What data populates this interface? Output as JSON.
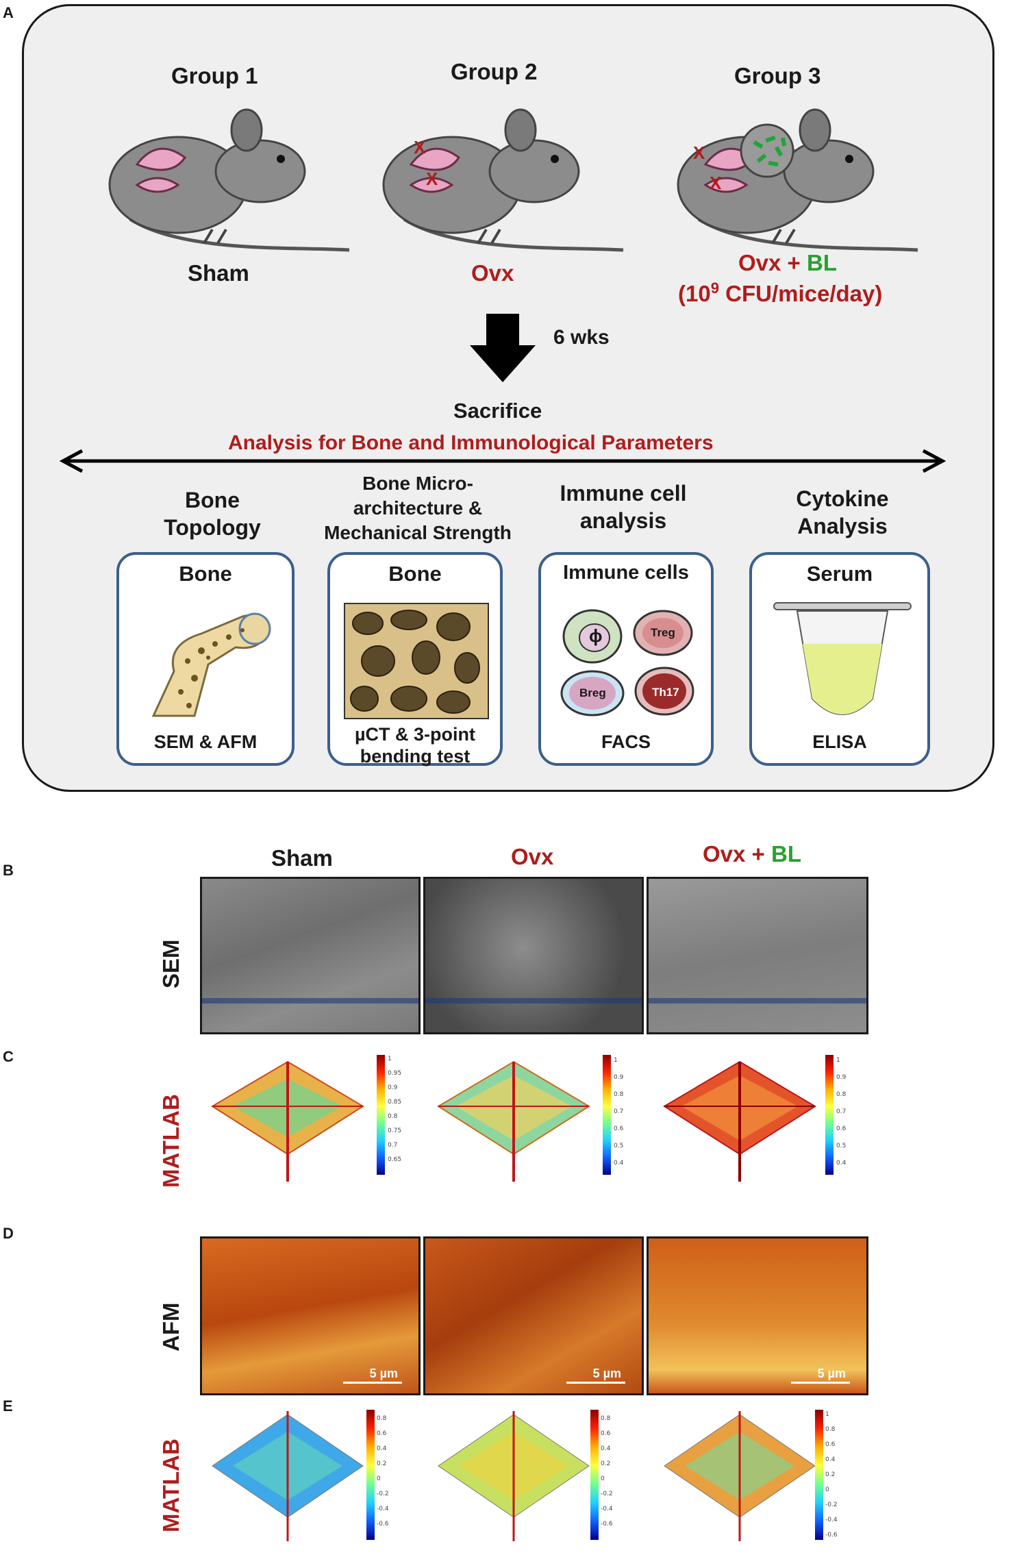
{
  "panels": {
    "a": "A",
    "b": "B",
    "c": "C",
    "d": "D",
    "e": "E"
  },
  "groups": [
    {
      "heading": "Group 1",
      "label": "Sham"
    },
    {
      "heading": "Group 2",
      "label": "Ovx"
    },
    {
      "heading": "Group 3",
      "label_ovx": "Ovx",
      "label_plus": " + ",
      "label_bl": "BL",
      "dose_open": "(10",
      "dose_exp": "9",
      "dose_rest": " CFU/mice/day)"
    }
  ],
  "marker_x": "X",
  "duration": "6 wks",
  "sacrifice": "Sacrifice",
  "analysis_title": "Analysis for Bone and Immunological Parameters",
  "analyses": [
    {
      "heading_l1": "Bone",
      "heading_l2": "Topology",
      "title": "Bone",
      "footer_l1": "SEM & AFM",
      "footer_l2": ""
    },
    {
      "heading_l1": "Bone Micro-",
      "heading_l2": "architecture &",
      "heading_l3": "Mechanical Strength",
      "title": "Bone",
      "footer_l1": "µCT & 3-point",
      "footer_l2": "bending test"
    },
    {
      "heading_l1": "Immune cell",
      "heading_l2": "analysis",
      "title": "Immune cells",
      "footer_l1": "FACS",
      "footer_l2": ""
    },
    {
      "heading_l1": "Cytokine",
      "heading_l2": "Analysis",
      "title": "Serum",
      "footer_l1": "ELISA",
      "footer_l2": ""
    }
  ],
  "cells": {
    "phi": "ϕ",
    "treg": "Treg",
    "breg": "Breg",
    "th17": "Th17"
  },
  "column_headers": {
    "sham": "Sham",
    "ovx": "Ovx",
    "ovxbl_ovx": "Ovx",
    "ovxbl_plus": " + ",
    "ovxbl_bl": "BL"
  },
  "row_labels": {
    "sem": "SEM",
    "matlab_c": "MATLAB",
    "afm": "AFM",
    "matlab_e": "MATLAB"
  },
  "scale_bar": "5 µm",
  "matlab_c_colorbars": [
    {
      "ticks": [
        "1",
        "0.95",
        "0.9",
        "0.85",
        "0.8",
        "0.75",
        "0.7",
        "0.65"
      ]
    },
    {
      "ticks": [
        "1",
        "0.9",
        "0.8",
        "0.7",
        "0.6",
        "0.5",
        "0.4"
      ]
    },
    {
      "ticks": [
        "1",
        "0.9",
        "0.8",
        "0.7",
        "0.6",
        "0.5",
        "0.4"
      ]
    }
  ],
  "matlab_e_colorbar": {
    "ticks": [
      "1",
      "0.8",
      "0.6",
      "0.4",
      "0.2",
      "0",
      "-0.2",
      "-0.4",
      "-0.6"
    ]
  },
  "colors": {
    "accent_red": "#b01c1c",
    "accent_green": "#27a12f",
    "card_border": "#3b5f8c",
    "afm": "#c8541a"
  }
}
